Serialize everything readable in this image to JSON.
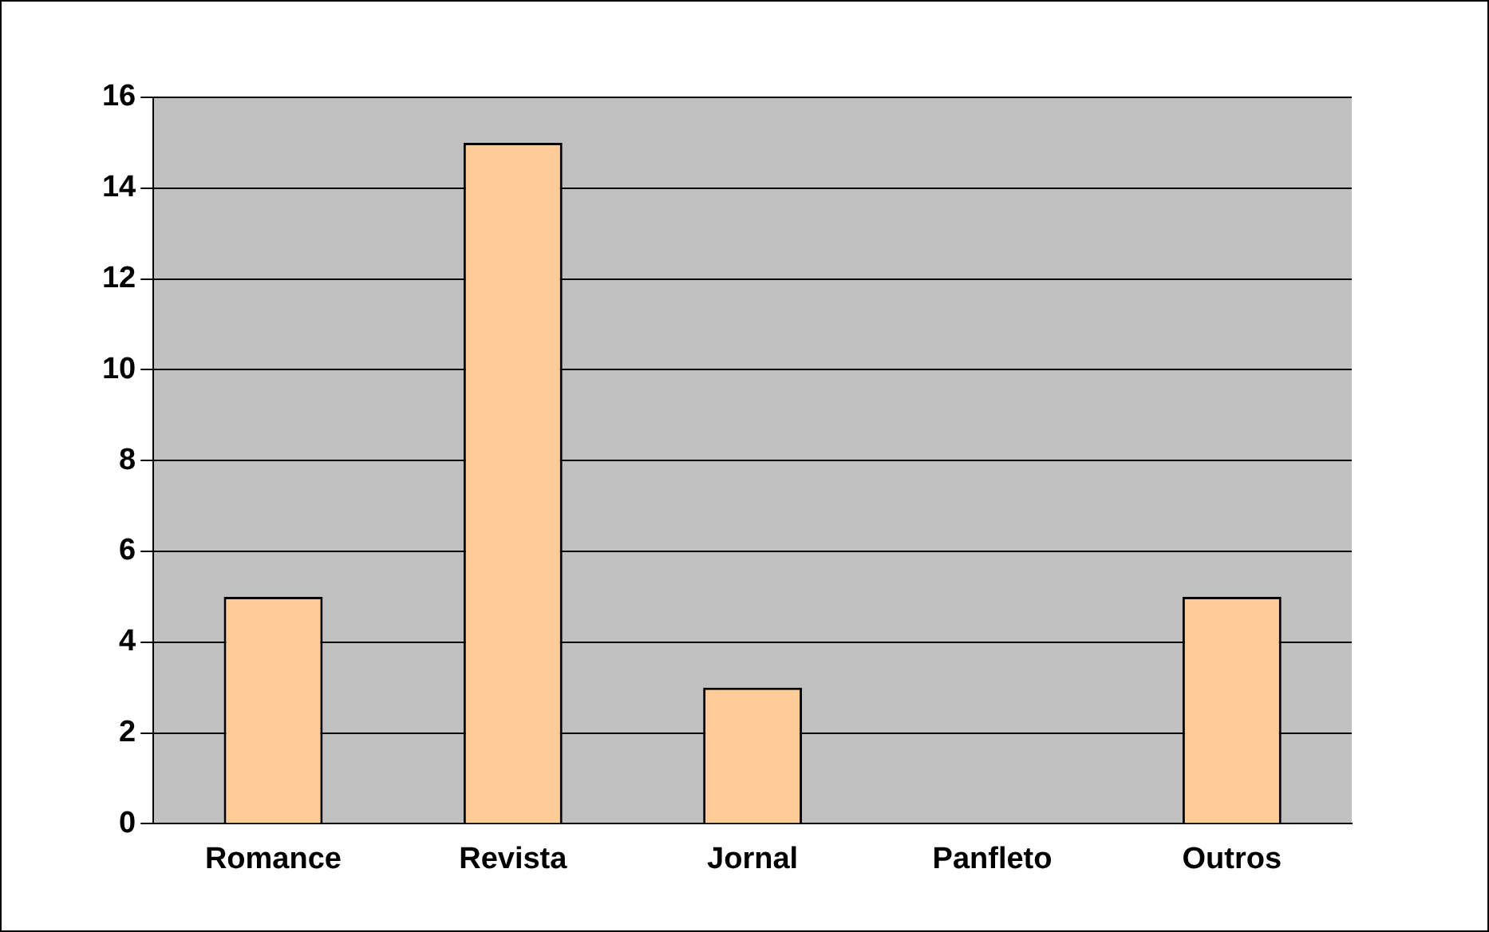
{
  "chart_data": {
    "type": "bar",
    "categories": [
      "Romance",
      "Revista",
      "Jornal",
      "Panfleto",
      "Outros"
    ],
    "values": [
      5,
      15,
      3,
      0,
      5
    ],
    "color": "#ffcc99",
    "ylim": [
      0,
      16
    ],
    "yticks": [
      0,
      2,
      4,
      6,
      8,
      10,
      12,
      14,
      16
    ],
    "grid": "y"
  }
}
